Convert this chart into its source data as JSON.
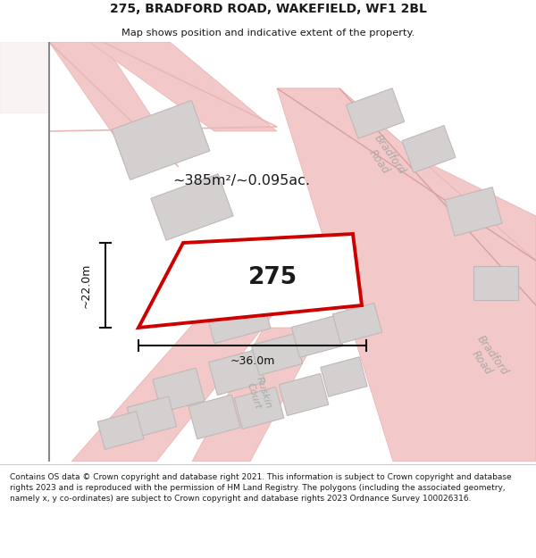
{
  "title_line1": "275, BRADFORD ROAD, WAKEFIELD, WF1 2BL",
  "title_line2": "Map shows position and indicative extent of the property.",
  "footer_text": "Contains OS data © Crown copyright and database right 2021. This information is subject to Crown copyright and database rights 2023 and is reproduced with the permission of HM Land Registry. The polygons (including the associated geometry, namely x, y co-ordinates) are subject to Crown copyright and database rights 2023 Ordnance Survey 100026316.",
  "property_label": "275",
  "area_label": "~385m²/~0.095ac.",
  "width_label": "~36.0m",
  "height_label": "~22.0m",
  "road_fill": "#f2c8c8",
  "road_edge": "#e8b0b0",
  "building_fill": "#d4d0d0",
  "building_edge": "#c0b8b8",
  "property_edge": "#cc0000",
  "text_dark": "#1a1a1a",
  "text_road": "#aaaaaa",
  "brad_road1": "Bradford\nRoad",
  "brad_road2": "Bradford\nRoad",
  "ruskin": "Ruskin\nCourt",
  "left_border_color": "#888888",
  "dim_color": "#111111"
}
